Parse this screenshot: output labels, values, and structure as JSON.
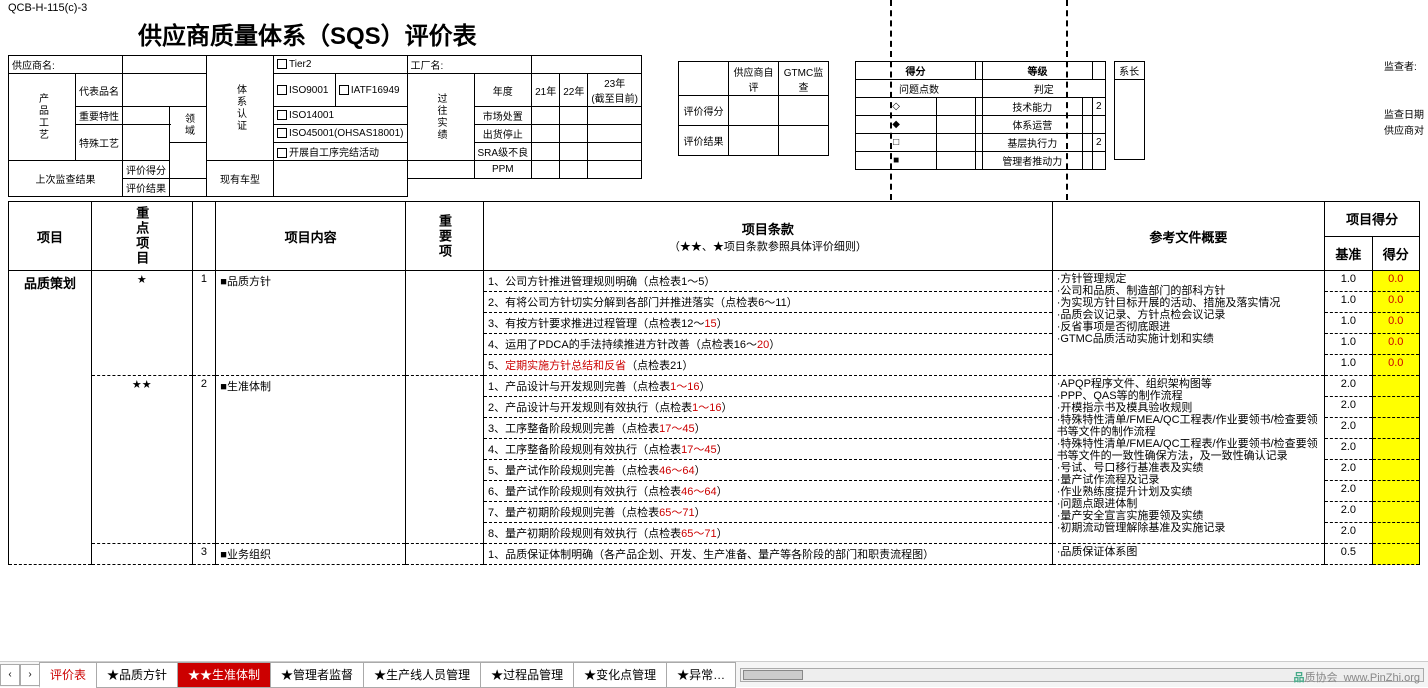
{
  "doc_code": "QCB-H-115(c)-3",
  "title": "供应商质量体系（SQS）评价表",
  "hdr": {
    "supplier_label": "供应商名:",
    "prod_proc": "产品工艺",
    "rep_prod": "代表品名",
    "key_char": "重要特性",
    "spec_proc": "特殊工艺",
    "domain": "领域",
    "sys_cert": "体系认证",
    "tier2": "Tier2",
    "iso9001": "ISO9001",
    "iatf": "IATF16949",
    "iso14001": "ISO14001",
    "iso45001": "ISO45001(OHSAS18001)",
    "self_improve": "开展自工序完结活动",
    "factory": "工厂名:",
    "past_perf": "过往实绩",
    "yr": "年度",
    "y21": "21年",
    "y22": "22年",
    "y23": "23年\n(截至目前)",
    "market": "市场处置",
    "ship_stop": "出货停止",
    "sra": "SRA级不良",
    "ppm": "PPM",
    "last_audit": "上次监查结果",
    "eval_score": "评价得分",
    "eval_result": "评价结果",
    "curr_model": "现有车型"
  },
  "self_eval": {
    "h1": "供应商自评",
    "h2": "GTMC监查",
    "r1": "评价得分",
    "r2": "评价结果"
  },
  "grade": {
    "score": "得分",
    "grade": "等级",
    "issues": "问题点数",
    "judge": "判定",
    "row1": "技术能力",
    "row2": "体系运营",
    "row3": "基层执行力",
    "row4": "管理者推动力",
    "n2": "2",
    "sys_head": "系长"
  },
  "right": {
    "l1": "监查者:",
    "l2": "监查日期",
    "l3": "供应商对"
  },
  "cols": {
    "proj": "项目",
    "key": "重点项目",
    "content": "项目内容",
    "imp": "重要项",
    "clause": "项目条款",
    "clause_sub": "（★★、★项目条款参照具体评价细则）",
    "ref": "参考文件概要",
    "proj_score": "项目得分",
    "base": "基准",
    "score": "得分"
  },
  "sections": [
    {
      "name": "品质策划",
      "items": [
        {
          "star": "★",
          "num": "1",
          "title": "■品质方针",
          "rows": [
            {
              "c": "1、公司方针推进管理规则明确（点检表1～5）",
              "b": "1.0",
              "s": "0.0",
              "y": true
            },
            {
              "c": "2、有将公司方针切实分解到各部门并推进落实（点检表6～11）",
              "b": "1.0",
              "s": "0.0",
              "y": true
            },
            {
              "c": "3、有按方针要求推进过程管理（点检表12～",
              "red": "15",
              "tail": "）",
              "b": "1.0",
              "s": "0.0",
              "y": true
            },
            {
              "c": "4、运用了PDCA的手法持续推进方针改善（点检表16～",
              "red": "20",
              "tail": "）",
              "b": "1.0",
              "s": "0.0",
              "y": true
            },
            {
              "c": "5、",
              "red": "定期实施方针总结和反省",
              "tail": "（点检表21）",
              "b": "1.0",
              "s": "0.0",
              "y": true
            }
          ],
          "ref": "·方针管理规定\n·公司和品质、制造部门的部科方针\n·为实现方针目标开展的活动、措施及落实情况\n·品质会议记录、方针点检会议记录\n·反省事项是否彻底跟进\n·GTMC品质活动实施计划和实绩"
        },
        {
          "star": "★★",
          "num": "2",
          "title": "■生准体制",
          "rows": [
            {
              "c": "1、产品设计与开发规则完善（点检表",
              "red": "1～16",
              "tail": "）",
              "b": "2.0",
              "s": "",
              "y": true
            },
            {
              "c": "2、产品设计与开发规则有效执行（点检表",
              "red": "1～16",
              "tail": "）",
              "b": "2.0",
              "s": "",
              "y": true
            },
            {
              "c": "3、工序整备阶段规则完善（点检表",
              "red": "17～45",
              "tail": "）",
              "b": "2.0",
              "s": "",
              "y": true
            },
            {
              "c": "4、工序整备阶段规则有效执行（点检表",
              "red": "17～45",
              "tail": "）",
              "b": "2.0",
              "s": "",
              "y": true
            },
            {
              "c": "5、量产试作阶段规则完善（点检表",
              "red": "46～64",
              "tail": "）",
              "b": "2.0",
              "s": "",
              "y": true
            },
            {
              "c": "6、量产试作阶段规则有效执行（点检表",
              "red": "46～64",
              "tail": "）",
              "b": "2.0",
              "s": "",
              "y": true
            },
            {
              "c": "7、量产初期阶段规则完善（点检表",
              "red": "65～71",
              "tail": "）",
              "b": "2.0",
              "s": "",
              "y": true
            },
            {
              "c": "8、量产初期阶段规则有效执行（点检表",
              "red": "65～71",
              "tail": "）",
              "b": "2.0",
              "s": "",
              "y": true
            }
          ],
          "ref": "·APQP程序文件、组织架构图等\n·PPP、QAS等的制作流程\n·开模指示书及模具验收规则\n·特殊特性清单/FMEA/QC工程表/作业要领书/检查要领书等文件的制作流程\n·特殊特性清单/FMEA/QC工程表/作业要领书/检查要领书等文件的一致性确保方法，及一致性确认记录\n·号试、号口移行基准表及实绩\n·量产试作流程及记录\n·作业熟练度提升计划及实绩\n·问题点跟进体制\n·量产安全宣言实施要领及实绩\n·初期流动管理解除基准及实施记录"
        },
        {
          "star": "",
          "num": "3",
          "title": "■业务组织",
          "rows": [
            {
              "c": "1、品质保证体制明确（各产品企划、开发、生产准备、量产等各阶段的部门和职责流程图）",
              "b": "0.5",
              "s": "",
              "y": true
            }
          ],
          "ref": "·品质保证体系图"
        }
      ]
    }
  ],
  "tabs": [
    "评价表",
    "★品质方针",
    "★★生准体制",
    "★管理者监督",
    "★生产线人员管理",
    "★过程品管理",
    "★变化点管理",
    "★异常…"
  ],
  "tab_active": 0,
  "tab_special": 2,
  "watermark": "品质协会  www.PinZhi.org"
}
